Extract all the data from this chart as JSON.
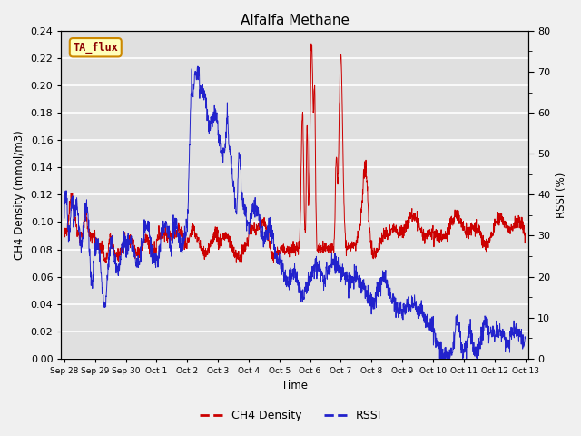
{
  "title": "Alfalfa Methane",
  "ylabel_left": "CH4 Density (mmol/m3)",
  "ylabel_right": "RSSI (%)",
  "xlabel": "Time",
  "ylim_left": [
    0.0,
    0.24
  ],
  "ylim_right": [
    0,
    80
  ],
  "yticks_left": [
    0.0,
    0.02,
    0.04,
    0.06,
    0.08,
    0.1,
    0.12,
    0.14,
    0.16,
    0.18,
    0.2,
    0.22,
    0.24
  ],
  "yticks_right_major": [
    0,
    10,
    20,
    30,
    40,
    50,
    60,
    70,
    80
  ],
  "yticks_right_minor": [
    5,
    15,
    25,
    35,
    45,
    55,
    65,
    75
  ],
  "xtick_labels": [
    "Sep 28",
    "Sep 29",
    "Sep 30",
    "Oct 1",
    "Oct 2",
    "Oct 3",
    "Oct 4",
    "Oct 5",
    "Oct 6",
    "Oct 7",
    "Oct 8",
    "Oct 9",
    "Oct 10",
    "Oct 11",
    "Oct 12",
    "Oct 13"
  ],
  "color_ch4": "#cc0000",
  "color_rssi": "#2222cc",
  "annotation_text": "TA_flux",
  "annotation_bg": "#ffffbb",
  "annotation_border": "#cc8800",
  "bg_color": "#e0e0e0",
  "grid_color": "#ffffff",
  "fig_bg": "#f0f0f0"
}
